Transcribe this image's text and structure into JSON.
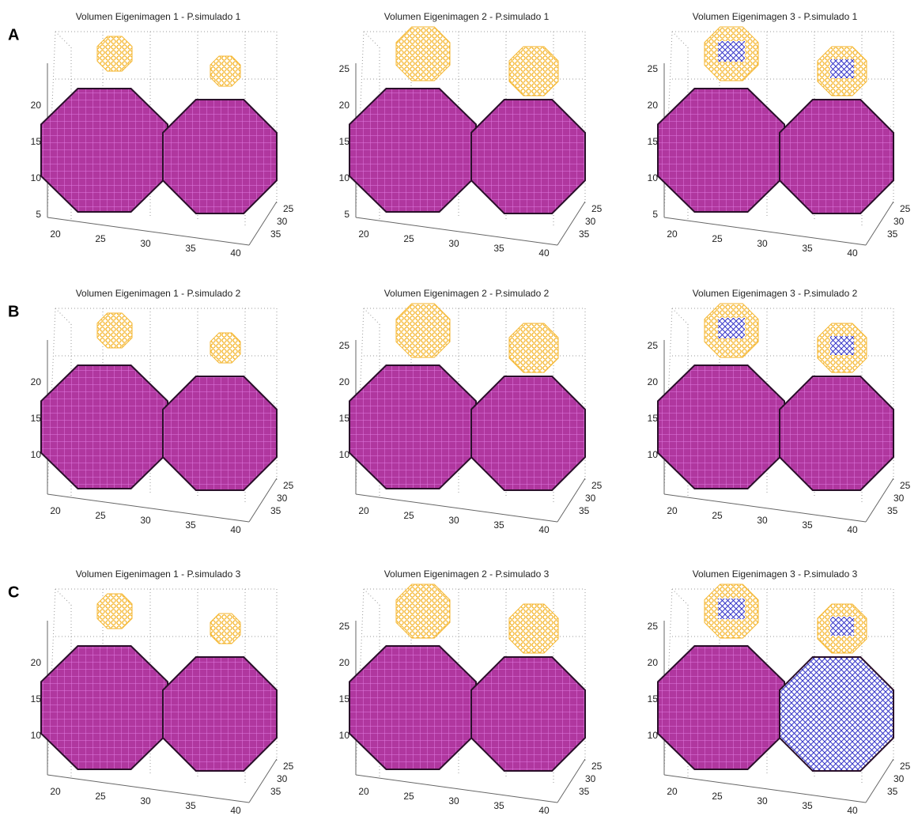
{
  "rows": [
    {
      "label": "A",
      "plots": [
        {
          "title": "Volumen Eigenimagen 1 - P.simulado 1",
          "yticks": [
            "5",
            "10",
            "15",
            "20"
          ],
          "xticks": [
            "20",
            "25",
            "30",
            "35",
            "40"
          ],
          "zticks": [
            "25",
            "30",
            "35"
          ]
        },
        {
          "title": "Volumen Eigenimagen 2 - P.simulado 1",
          "yticks": [
            "5",
            "10",
            "15",
            "20",
            "25"
          ],
          "xticks": [
            "20",
            "25",
            "30",
            "35",
            "40"
          ],
          "zticks": [
            "25",
            "30",
            "35"
          ]
        },
        {
          "title": "Volumen Eigenimagen 3 - P.simulado 1",
          "yticks": [
            "5",
            "10",
            "15",
            "20",
            "25"
          ],
          "xticks": [
            "20",
            "25",
            "30",
            "35",
            "40"
          ],
          "zticks": [
            "25",
            "30",
            "35"
          ]
        }
      ]
    },
    {
      "label": "B",
      "plots": [
        {
          "title": "Volumen Eigenimagen 1 - P.simulado  2",
          "yticks": [
            "10",
            "15",
            "20"
          ],
          "xticks": [
            "20",
            "25",
            "30",
            "35",
            "40"
          ],
          "zticks": [
            "25",
            "30",
            "35"
          ]
        },
        {
          "title": "Volumen Eigenimagen 2 - P.simulado  2",
          "yticks": [
            "10",
            "15",
            "20",
            "25"
          ],
          "xticks": [
            "20",
            "25",
            "30",
            "35",
            "40"
          ],
          "zticks": [
            "25",
            "30",
            "35"
          ]
        },
        {
          "title": "Volumen Eigenimagen 3 - P.simulado  2",
          "yticks": [
            "10",
            "15",
            "20",
            "25"
          ],
          "xticks": [
            "20",
            "25",
            "30",
            "35",
            "40"
          ],
          "zticks": [
            "25",
            "30",
            "35"
          ]
        }
      ]
    },
    {
      "label": "C",
      "plots": [
        {
          "title": "Volumen Eigenimagen 1 - P.simulado  3",
          "yticks": [
            "10",
            "15",
            "20"
          ],
          "xticks": [
            "20",
            "25",
            "30",
            "35",
            "40"
          ],
          "zticks": [
            "25",
            "30",
            "35"
          ]
        },
        {
          "title": "Volumen Eigenimagen 2 - P.simulado  3",
          "yticks": [
            "10",
            "15",
            "20",
            "25"
          ],
          "xticks": [
            "20",
            "25",
            "30",
            "35",
            "40"
          ],
          "zticks": [
            "25",
            "30",
            "35"
          ]
        },
        {
          "title": "Volumen Eigenimagen 3 - P.simulado  3",
          "yticks": [
            "10",
            "15",
            "20",
            "25"
          ],
          "xticks": [
            "20",
            "25",
            "30",
            "35",
            "40"
          ],
          "zticks": [
            "25",
            "30",
            "35"
          ]
        }
      ]
    }
  ]
}
